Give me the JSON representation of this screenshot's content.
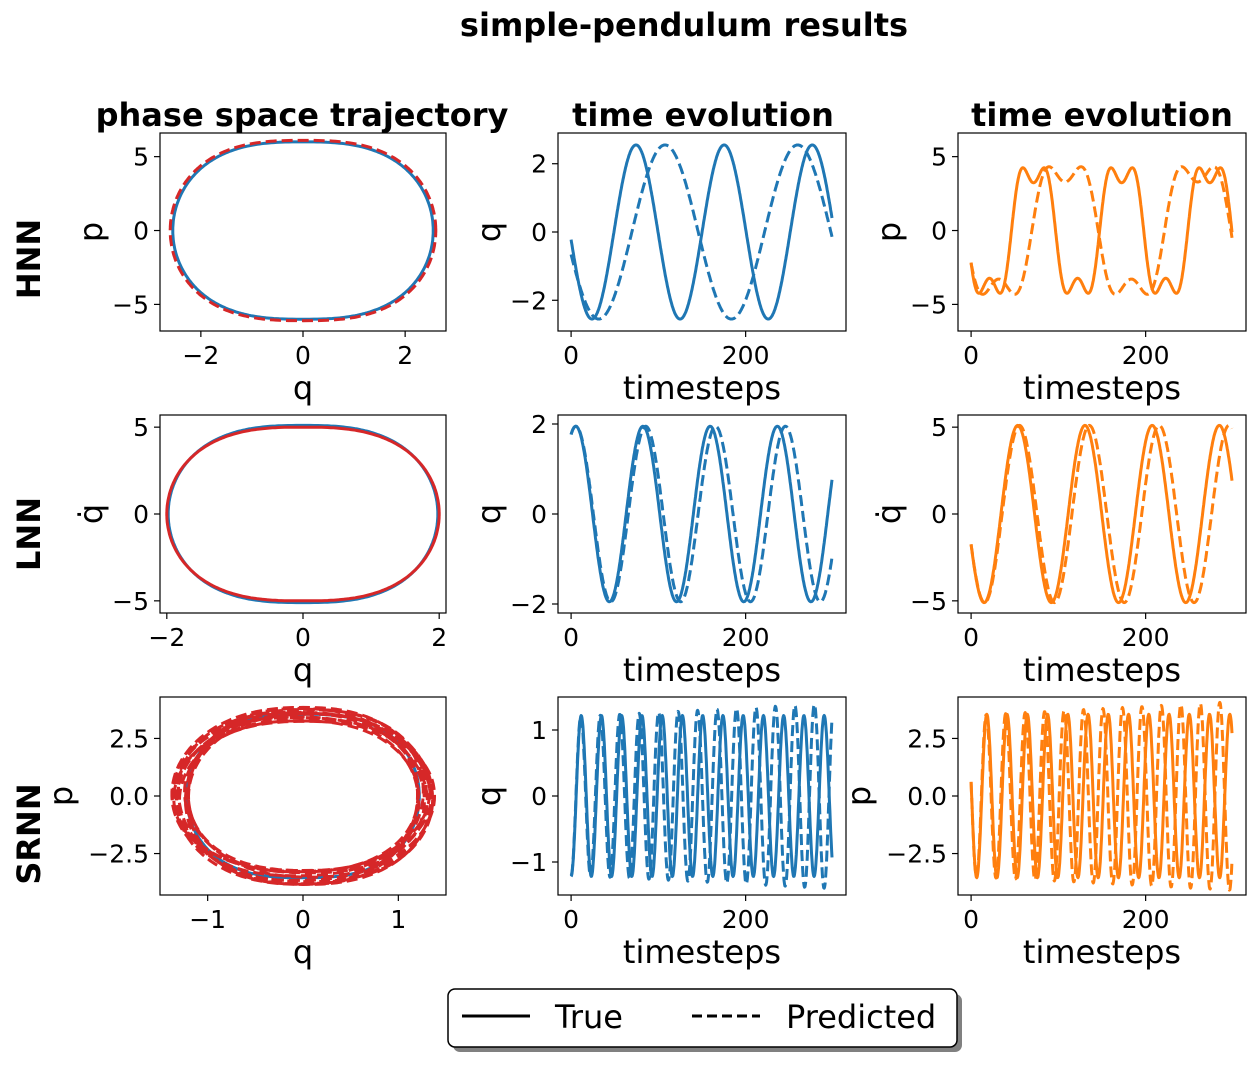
{
  "figure": {
    "title": "simple-pendulum results",
    "column_titles": [
      "phase space trajectory",
      "time evolution",
      "time evolution"
    ],
    "row_labels": [
      "HNN",
      "LNN",
      "SRNN"
    ],
    "legend": {
      "location": "lower-center",
      "entries": [
        {
          "label": "True",
          "style": "solid"
        },
        {
          "label": "Predicted",
          "style": "dashed"
        }
      ]
    },
    "colors": {
      "blue": "#1f77b4",
      "orange": "#ff7f0e",
      "red": "#d62728"
    }
  },
  "chart_data": [
    {
      "id": "hnn-phase",
      "type": "line",
      "row": "HNN",
      "title": "phase space trajectory",
      "xlabel": "q",
      "ylabel": "p",
      "xlim": [
        -2.8,
        2.8
      ],
      "ylim": [
        -6.8,
        6.6
      ],
      "xticks": [
        -2,
        0,
        2
      ],
      "xticklabels": [
        "−2",
        "0",
        "2"
      ],
      "yticks": [
        -5,
        0,
        5
      ],
      "yticklabels": [
        "−5",
        "0",
        "5"
      ],
      "series": [
        {
          "kind": "phase",
          "role": "true",
          "color": "#1f77b4",
          "style": "solid",
          "qmax": 2.55,
          "pmax": 6.0,
          "loops": 1
        },
        {
          "kind": "phase",
          "role": "predicted",
          "color": "#d62728",
          "style": "dashed",
          "qmax": 2.6,
          "pmax": 6.1,
          "loops": 1
        }
      ]
    },
    {
      "id": "hnn-q",
      "type": "line",
      "row": "HNN",
      "title": "time evolution",
      "xlabel": "timesteps",
      "ylabel": "q",
      "xlim": [
        -15,
        315
      ],
      "ylim": [
        -2.9,
        2.9
      ],
      "xticks": [
        0,
        200
      ],
      "xticklabels": [
        "0",
        "200"
      ],
      "yticks": [
        -2,
        0,
        2
      ],
      "yticklabels": [
        "−2",
        "0",
        "2"
      ],
      "series": [
        {
          "kind": "wave",
          "role": "true",
          "color": "#1f77b4",
          "style": "solid",
          "amp": 2.55,
          "period": 101,
          "phase_deg": 185,
          "harmonic": 0,
          "t_end": 299
        },
        {
          "kind": "wave",
          "role": "predicted",
          "color": "#1f77b4",
          "style": "dashed",
          "amp": 2.55,
          "period": 152,
          "phase_deg": 195,
          "harmonic": 0,
          "t_end": 299
        }
      ]
    },
    {
      "id": "hnn-p",
      "type": "line",
      "row": "HNN",
      "title": "time evolution",
      "xlabel": "timesteps",
      "ylabel": "p",
      "xlim": [
        -15,
        315
      ],
      "ylim": [
        -6.8,
        6.6
      ],
      "xticks": [
        0,
        200
      ],
      "xticklabels": [
        "0",
        "200"
      ],
      "yticks": [
        -5,
        0,
        5
      ],
      "yticklabels": [
        "−5",
        "0",
        "5"
      ],
      "series": [
        {
          "kind": "wave",
          "role": "true",
          "color": "#ff7f0e",
          "style": "solid",
          "amp": 6.0,
          "period": 101,
          "phase_deg": 195,
          "harmonic": 0.3,
          "t_end": 299
        },
        {
          "kind": "wave",
          "role": "predicted",
          "color": "#ff7f0e",
          "style": "dashed",
          "amp": 6.1,
          "period": 152,
          "phase_deg": 195,
          "harmonic": 0.3,
          "t_end": 299
        }
      ]
    },
    {
      "id": "lnn-phase",
      "type": "line",
      "row": "LNN",
      "title": "",
      "xlabel": "q",
      "ylabel": "q̇",
      "xlim": [
        -2.1,
        2.1
      ],
      "ylim": [
        -5.7,
        5.7
      ],
      "xticks": [
        -2,
        0,
        2
      ],
      "xticklabels": [
        "−2",
        "0",
        "2"
      ],
      "yticks": [
        -5,
        0,
        5
      ],
      "yticklabels": [
        "−5",
        "0",
        "5"
      ],
      "series": [
        {
          "kind": "phase",
          "role": "true",
          "color": "#1f77b4",
          "style": "solid",
          "qmax": 1.98,
          "pmax": 5.1,
          "loops": 1
        },
        {
          "kind": "phase",
          "role": "predicted",
          "color": "#d62728",
          "style": "solid",
          "qmax": 2.0,
          "pmax": 5.0,
          "loops": 1
        }
      ]
    },
    {
      "id": "lnn-q",
      "type": "line",
      "row": "LNN",
      "title": "",
      "xlabel": "timesteps",
      "ylabel": "q",
      "xlim": [
        -15,
        315
      ],
      "ylim": [
        -2.2,
        2.2
      ],
      "xticks": [
        0,
        200
      ],
      "xticklabels": [
        "0",
        "200"
      ],
      "yticks": [
        -2,
        0,
        2
      ],
      "yticklabels": [
        "−2",
        "0",
        "2"
      ],
      "series": [
        {
          "kind": "wave",
          "role": "true",
          "color": "#1f77b4",
          "style": "solid",
          "amp": 1.95,
          "period": 77,
          "phase_deg": 65,
          "harmonic": 0,
          "t_end": 299
        },
        {
          "kind": "wave",
          "role": "predicted",
          "color": "#1f77b4",
          "style": "dashed",
          "amp": 1.95,
          "period": 80,
          "phase_deg": 65,
          "harmonic": 0,
          "t_end": 299
        }
      ]
    },
    {
      "id": "lnn-p",
      "type": "line",
      "row": "LNN",
      "title": "",
      "xlabel": "timesteps",
      "ylabel": "q̇",
      "xlim": [
        -15,
        315
      ],
      "ylim": [
        -5.7,
        5.7
      ],
      "xticks": [
        0,
        200
      ],
      "xticklabels": [
        "0",
        "200"
      ],
      "yticks": [
        -5,
        0,
        5
      ],
      "yticklabels": [
        "−5",
        "0",
        "5"
      ],
      "series": [
        {
          "kind": "wave",
          "role": "true",
          "color": "#ff7f0e",
          "style": "solid",
          "amp": 5.1,
          "period": 77,
          "phase_deg": 200,
          "harmonic": 0,
          "t_end": 299
        },
        {
          "kind": "wave",
          "role": "predicted",
          "color": "#ff7f0e",
          "style": "dashed",
          "amp": 5.1,
          "period": 80,
          "phase_deg": 200,
          "harmonic": 0,
          "t_end": 299
        }
      ]
    },
    {
      "id": "srnn-phase",
      "type": "line",
      "row": "SRNN",
      "title": "",
      "xlabel": "q",
      "ylabel": "p",
      "xlim": [
        -1.5,
        1.5
      ],
      "ylim": [
        -4.3,
        4.3
      ],
      "xticks": [
        -1,
        0,
        1
      ],
      "xticklabels": [
        "−1",
        "0",
        "1"
      ],
      "yticks": [
        -2.5,
        0,
        2.5
      ],
      "yticklabels": [
        "−2.5",
        "0.0",
        "2.5"
      ],
      "series": [
        {
          "kind": "phase",
          "role": "true",
          "color": "#1f77b4",
          "style": "solid",
          "qmax": 1.22,
          "pmax": 3.55,
          "loops": 1
        },
        {
          "kind": "spiral",
          "role": "predicted",
          "color": "#d62728",
          "style": "dashed",
          "qmax": 1.38,
          "pmax": 3.85,
          "loops": 13
        }
      ]
    },
    {
      "id": "srnn-q",
      "type": "line",
      "row": "SRNN",
      "title": "",
      "xlabel": "timesteps",
      "ylabel": "q",
      "xlim": [
        -15,
        315
      ],
      "ylim": [
        -1.5,
        1.5
      ],
      "xticks": [
        0,
        200
      ],
      "xticklabels": [
        "0",
        "200"
      ],
      "yticks": [
        -1,
        0,
        1
      ],
      "yticklabels": [
        "−1",
        "0",
        "1"
      ],
      "series": [
        {
          "kind": "wave",
          "role": "true",
          "color": "#1f77b4",
          "style": "solid",
          "amp": 1.22,
          "period": 23.2,
          "phase_deg": 270,
          "harmonic": 0,
          "t_end": 299
        },
        {
          "kind": "wave",
          "role": "predicted",
          "color": "#1f77b4",
          "style": "dashed",
          "amp": 1.2,
          "period": 22.3,
          "phase_deg": 270,
          "harmonic": 0,
          "t_end": 299,
          "grow": 0.17
        }
      ]
    },
    {
      "id": "srnn-p",
      "type": "line",
      "row": "SRNN",
      "title": "",
      "xlabel": "timesteps",
      "ylabel": "p",
      "xlim": [
        -15,
        315
      ],
      "ylim": [
        -4.3,
        4.3
      ],
      "xticks": [
        0,
        200
      ],
      "xticklabels": [
        "0",
        "200"
      ],
      "yticks": [
        -2.5,
        0,
        2.5
      ],
      "yticklabels": [
        "−2.5",
        "0.0",
        "2.5"
      ],
      "series": [
        {
          "kind": "wave",
          "role": "true",
          "color": "#ff7f0e",
          "style": "solid",
          "amp": 3.55,
          "period": 23.2,
          "phase_deg": 170,
          "harmonic": 0,
          "t_end": 299
        },
        {
          "kind": "wave",
          "role": "predicted",
          "color": "#ff7f0e",
          "style": "dashed",
          "amp": 3.5,
          "period": 22.3,
          "phase_deg": 170,
          "harmonic": 0,
          "t_end": 299,
          "grow": 0.17
        }
      ]
    }
  ]
}
